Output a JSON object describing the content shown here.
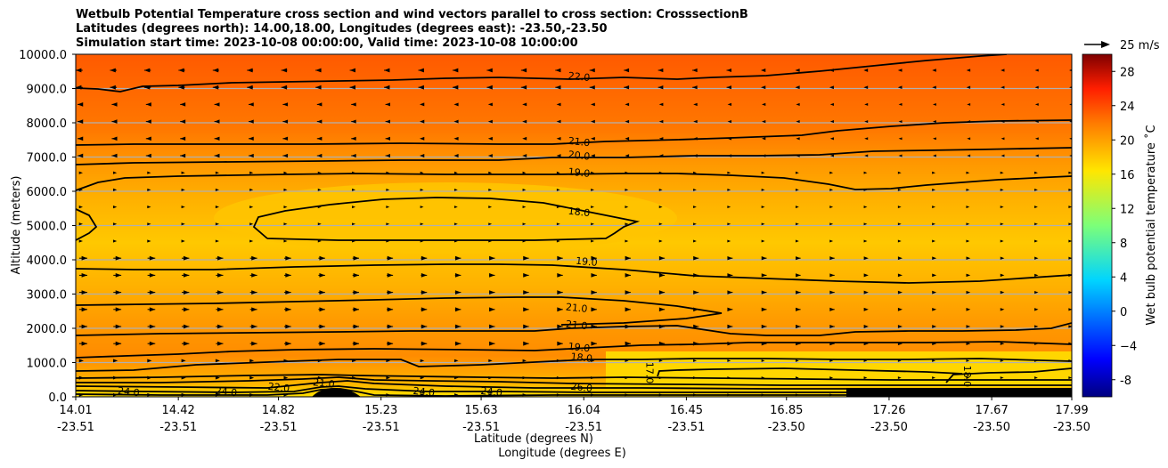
{
  "title_lines": [
    "Wetbulb Potential Temperature cross section and wind vectors parallel to cross section: CrosssectionB",
    "Latitudes (degrees north): 14.00,18.00, Longitudes (degrees east): -23.50,-23.50",
    "Simulation start time: 2023-10-08 00:00:00, Valid time: 2023-10-08 10:00:00"
  ],
  "chart_data": {
    "type": "contour",
    "ylabel": "Altitude (meters)",
    "xlabel_lines": [
      "Latitude (degrees N)",
      "Longitude (degrees E)"
    ],
    "yticks": [
      "0.0",
      "1000.0",
      "2000.0",
      "3000.0",
      "4000.0",
      "5000.0",
      "6000.0",
      "7000.0",
      "8000.0",
      "9000.0",
      "10000.0"
    ],
    "ylim": [
      0,
      10000
    ],
    "xticks": [
      {
        "lat": "14.01",
        "lon": "-23.51"
      },
      {
        "lat": "14.42",
        "lon": "-23.51"
      },
      {
        "lat": "14.82",
        "lon": "-23.51"
      },
      {
        "lat": "15.23",
        "lon": "-23.51"
      },
      {
        "lat": "15.63",
        "lon": "-23.51"
      },
      {
        "lat": "16.04",
        "lon": "-23.51"
      },
      {
        "lat": "16.45",
        "lon": "-23.51"
      },
      {
        "lat": "16.85",
        "lon": "-23.50"
      },
      {
        "lat": "17.26",
        "lon": "-23.50"
      },
      {
        "lat": "17.67",
        "lon": "-23.50"
      },
      {
        "lat": "17.99",
        "lon": "-23.50"
      }
    ],
    "colorbar": {
      "label": "Wet bulb potential temperature ˚C",
      "ticks": [
        "-8",
        "−4",
        "0",
        "4",
        "8",
        "12",
        "16",
        "20",
        "24",
        "28"
      ],
      "range": [
        -10,
        30
      ],
      "colormap": "jet"
    },
    "vector_key": "25 m/s",
    "contours": [
      {
        "level": "22.0",
        "altitude": 9000
      },
      {
        "level": "21.0",
        "altitude": 7300
      },
      {
        "level": "20.0",
        "altitude": 6900
      },
      {
        "level": "19.0",
        "altitude": 6400
      },
      {
        "level": "18.0",
        "altitude": 5300
      },
      {
        "level": "19.0",
        "altitude": 3600
      },
      {
        "level": "21.0",
        "altitude": 2600
      },
      {
        "level": "21.0",
        "altitude": 1900
      },
      {
        "level": "19.0",
        "altitude": 1300
      },
      {
        "level": "18.0",
        "altitude": 900
      },
      {
        "level": "17.0",
        "altitude": 700
      },
      {
        "level": "18.0",
        "altitude": 650
      }
    ],
    "contour_labels": [
      {
        "text": "22.0",
        "lat": 16.02,
        "alt": 9250
      },
      {
        "text": "21.0",
        "lat": 16.02,
        "alt": 7350
      },
      {
        "text": "20.0",
        "lat": 16.02,
        "alt": 6950
      },
      {
        "text": "19.0",
        "lat": 16.02,
        "alt": 6450
      },
      {
        "text": "18.0",
        "lat": 16.02,
        "alt": 5300
      },
      {
        "text": "19.0",
        "lat": 16.05,
        "alt": 3850
      },
      {
        "text": "21.0",
        "lat": 16.01,
        "alt": 2500
      },
      {
        "text": "21.0",
        "lat": 16.01,
        "alt": 2000
      },
      {
        "text": "19.0",
        "lat": 16.02,
        "alt": 1350
      },
      {
        "text": "18.0",
        "lat": 16.03,
        "alt": 1050
      },
      {
        "text": "17.0",
        "lat": 16.29,
        "alt": 700
      },
      {
        "text": "18.0",
        "lat": 17.56,
        "alt": 600
      },
      {
        "text": "24.0",
        "lat": 14.22,
        "alt": 50
      },
      {
        "text": "24.0",
        "lat": 14.61,
        "alt": 50
      },
      {
        "text": "22.0",
        "lat": 14.82,
        "alt": 180
      },
      {
        "text": "21.0",
        "lat": 15.0,
        "alt": 300
      },
      {
        "text": "24.0",
        "lat": 15.4,
        "alt": 50
      },
      {
        "text": "24.0",
        "lat": 15.67,
        "alt": 50
      },
      {
        "text": "26.0",
        "lat": 16.03,
        "alt": 180
      }
    ]
  }
}
